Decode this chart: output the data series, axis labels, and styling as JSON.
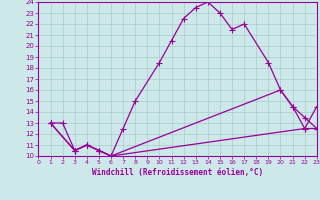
{
  "xlabel": "Windchill (Refroidissement éolien,°C)",
  "xlim": [
    0,
    23
  ],
  "ylim": [
    10,
    24
  ],
  "bg_color": "#cce8e8",
  "line_color": "#990099",
  "grid_color": "#aacccc",
  "line1_x": [
    1,
    2,
    3,
    4,
    5,
    6,
    7,
    8,
    10,
    11,
    12,
    13,
    14,
    15,
    16,
    17,
    19,
    20,
    21,
    22,
    23
  ],
  "line1_y": [
    13,
    13,
    10.5,
    11,
    10.5,
    10,
    12.5,
    15,
    18.5,
    20.5,
    22.5,
    23.5,
    24,
    23,
    21.5,
    22,
    18.5,
    16,
    14.5,
    12.5,
    14.5
  ],
  "line2_x": [
    1,
    3,
    4,
    5,
    6,
    22,
    23
  ],
  "line2_y": [
    13,
    10.5,
    11,
    10.5,
    10,
    12.5,
    12.5
  ],
  "line3_x": [
    1,
    3,
    4,
    5,
    6,
    20,
    21,
    22,
    23
  ],
  "line3_y": [
    13,
    10.5,
    11,
    10.5,
    10,
    16,
    14.5,
    13.5,
    12.5
  ]
}
